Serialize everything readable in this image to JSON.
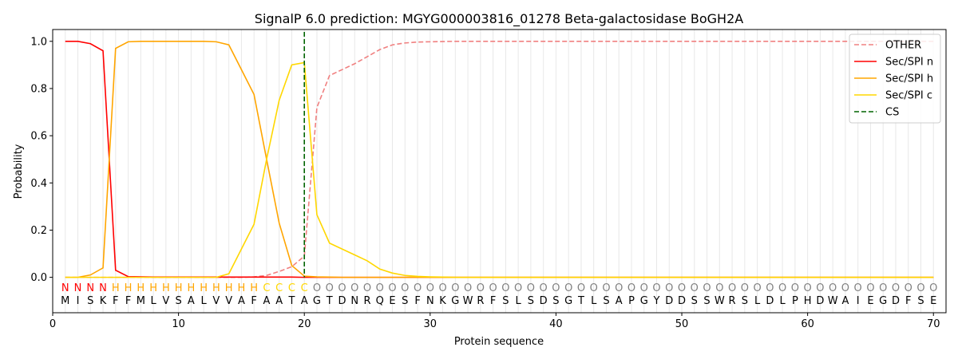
{
  "chart_data": {
    "type": "line",
    "title": "SignalP 6.0 prediction: MGYG000003816_01278 Beta-galactosidase BoGH2A",
    "xlabel": "Protein sequence",
    "ylabel": "Probability",
    "xlim": [
      0,
      71
    ],
    "ylim": [
      -0.15,
      1.05
    ],
    "xticks": [
      0,
      10,
      20,
      30,
      40,
      50,
      60,
      70
    ],
    "yticks": [
      0.0,
      0.2,
      0.4,
      0.6,
      0.8,
      1.0
    ],
    "ytick_labels": [
      "0.0",
      "0.2",
      "0.4",
      "0.6",
      "0.8",
      "1.0"
    ],
    "grid": "vertical lines at each residue",
    "legend_position": "top-right",
    "sequence": [
      "M",
      "I",
      "S",
      "K",
      "F",
      "F",
      "M",
      "L",
      "V",
      "S",
      "A",
      "L",
      "V",
      "V",
      "A",
      "F",
      "A",
      "A",
      "T",
      "A",
      "G",
      "T",
      "D",
      "N",
      "R",
      "Q",
      "E",
      "S",
      "F",
      "N",
      "K",
      "G",
      "W",
      "R",
      "F",
      "S",
      "L",
      "S",
      "D",
      "S",
      "G",
      "T",
      "L",
      "S",
      "A",
      "P",
      "G",
      "Y",
      "D",
      "D",
      "S",
      "S",
      "W",
      "R",
      "S",
      "L",
      "D",
      "L",
      "P",
      "H",
      "D",
      "W",
      "A",
      "I",
      "E",
      "G",
      "D",
      "F",
      "S",
      "E"
    ],
    "labels": [
      "N",
      "N",
      "N",
      "N",
      "H",
      "H",
      "H",
      "H",
      "H",
      "H",
      "H",
      "H",
      "H",
      "H",
      "H",
      "H",
      "C",
      "C",
      "C",
      "C",
      "O",
      "O",
      "O",
      "O",
      "O",
      "O",
      "O",
      "O",
      "O",
      "O",
      "O",
      "O",
      "O",
      "O",
      "O",
      "O",
      "O",
      "O",
      "O",
      "O",
      "O",
      "O",
      "O",
      "O",
      "O",
      "O",
      "O",
      "O",
      "O",
      "O",
      "O",
      "O",
      "O",
      "O",
      "O",
      "O",
      "O",
      "O",
      "O",
      "O",
      "O",
      "O",
      "O",
      "O",
      "O",
      "O",
      "O",
      "O",
      "O",
      "O"
    ],
    "label_colors": {
      "N": "#ff0000",
      "H": "#ffa500",
      "C": "#ffd700",
      "O": "#808080"
    },
    "cleavage_site": 20,
    "series": [
      {
        "name": "OTHER",
        "color": "#f08080",
        "dash": "dashed",
        "x": [
          1,
          2,
          3,
          4,
          5,
          6,
          7,
          8,
          9,
          10,
          11,
          12,
          13,
          14,
          15,
          16,
          17,
          18,
          19,
          20,
          21,
          22,
          23,
          24,
          25,
          26,
          27,
          28,
          29,
          30,
          31,
          32,
          33,
          34,
          35,
          36,
          37,
          38,
          39,
          40,
          41,
          42,
          43,
          44,
          45,
          46,
          47,
          48,
          49,
          50,
          51,
          52,
          53,
          54,
          55,
          56,
          57,
          58,
          59,
          60,
          61,
          62,
          63,
          64,
          65,
          66,
          67,
          68,
          69,
          70
        ],
        "values": [
          0.0,
          0.0,
          0.0,
          0.0,
          0.0,
          0.0,
          0.0,
          0.0,
          0.0,
          0.0,
          0.0,
          0.0,
          0.0,
          0.0,
          0.0,
          0.002,
          0.008,
          0.025,
          0.045,
          0.09,
          0.72,
          0.855,
          0.88,
          0.905,
          0.935,
          0.965,
          0.985,
          0.993,
          0.997,
          0.998,
          0.999,
          1.0,
          1.0,
          1.0,
          1.0,
          1.0,
          1.0,
          1.0,
          1.0,
          1.0,
          1.0,
          1.0,
          1.0,
          1.0,
          1.0,
          1.0,
          1.0,
          1.0,
          1.0,
          1.0,
          1.0,
          1.0,
          1.0,
          1.0,
          1.0,
          1.0,
          1.0,
          1.0,
          1.0,
          1.0,
          1.0,
          1.0,
          1.0,
          1.0,
          1.0,
          1.0,
          1.0,
          1.0,
          1.0,
          1.0
        ]
      },
      {
        "name": "Sec/SPI n",
        "color": "#ff0000",
        "dash": "solid",
        "x": [
          1,
          2,
          3,
          4,
          5,
          6,
          7,
          8,
          9,
          10,
          11,
          12,
          13,
          14,
          15,
          16,
          17,
          18,
          19,
          20,
          21,
          22,
          23,
          24,
          25,
          26,
          27,
          28,
          29,
          30,
          31,
          32,
          33,
          34,
          35,
          36,
          37,
          38,
          39,
          40,
          41,
          42,
          43,
          44,
          45,
          46,
          47,
          48,
          49,
          50,
          51,
          52,
          53,
          54,
          55,
          56,
          57,
          58,
          59,
          60,
          61,
          62,
          63,
          64,
          65,
          66,
          67,
          68,
          69,
          70
        ],
        "values": [
          1.0,
          1.0,
          0.99,
          0.96,
          0.03,
          0.003,
          0.002,
          0.001,
          0.001,
          0.001,
          0.001,
          0.001,
          0.001,
          0.001,
          0.001,
          0.001,
          0.001,
          0.001,
          0.001,
          0.0,
          0.0,
          0.0,
          0.0,
          0.0,
          0.0,
          0.0,
          0.0,
          0.0,
          0.0,
          0.0,
          0.0,
          0.0,
          0.0,
          0.0,
          0.0,
          0.0,
          0.0,
          0.0,
          0.0,
          0.0,
          0.0,
          0.0,
          0.0,
          0.0,
          0.0,
          0.0,
          0.0,
          0.0,
          0.0,
          0.0,
          0.0,
          0.0,
          0.0,
          0.0,
          0.0,
          0.0,
          0.0,
          0.0,
          0.0,
          0.0,
          0.0,
          0.0,
          0.0,
          0.0,
          0.0,
          0.0,
          0.0,
          0.0,
          0.0,
          0.0
        ]
      },
      {
        "name": "Sec/SPI h",
        "color": "#ffa500",
        "dash": "solid",
        "x": [
          1,
          2,
          3,
          4,
          5,
          6,
          7,
          8,
          9,
          10,
          11,
          12,
          13,
          14,
          15,
          16,
          17,
          18,
          19,
          20,
          21,
          22,
          23,
          24,
          25,
          26,
          27,
          28,
          29,
          30,
          31,
          32,
          33,
          34,
          35,
          36,
          37,
          38,
          39,
          40,
          41,
          42,
          43,
          44,
          45,
          46,
          47,
          48,
          49,
          50,
          51,
          52,
          53,
          54,
          55,
          56,
          57,
          58,
          59,
          60,
          61,
          62,
          63,
          64,
          65,
          66,
          67,
          68,
          69,
          70
        ],
        "values": [
          0.0,
          0.0,
          0.01,
          0.04,
          0.97,
          0.998,
          1.0,
          1.0,
          1.0,
          1.0,
          1.0,
          1.0,
          0.998,
          0.985,
          0.88,
          0.775,
          0.5,
          0.23,
          0.05,
          0.005,
          0.002,
          0.001,
          0.0,
          0.0,
          0.0,
          0.0,
          0.0,
          0.0,
          0.0,
          0.0,
          0.0,
          0.0,
          0.0,
          0.0,
          0.0,
          0.0,
          0.0,
          0.0,
          0.0,
          0.0,
          0.0,
          0.0,
          0.0,
          0.0,
          0.0,
          0.0,
          0.0,
          0.0,
          0.0,
          0.0,
          0.0,
          0.0,
          0.0,
          0.0,
          0.0,
          0.0,
          0.0,
          0.0,
          0.0,
          0.0,
          0.0,
          0.0,
          0.0,
          0.0,
          0.0,
          0.0,
          0.0,
          0.0,
          0.0,
          0.0
        ]
      },
      {
        "name": "Sec/SPI c",
        "color": "#ffd700",
        "dash": "solid",
        "x": [
          1,
          2,
          3,
          4,
          5,
          6,
          7,
          8,
          9,
          10,
          11,
          12,
          13,
          14,
          15,
          16,
          17,
          18,
          19,
          20,
          21,
          22,
          23,
          24,
          25,
          26,
          27,
          28,
          29,
          30,
          31,
          32,
          33,
          34,
          35,
          36,
          37,
          38,
          39,
          40,
          41,
          42,
          43,
          44,
          45,
          46,
          47,
          48,
          49,
          50,
          51,
          52,
          53,
          54,
          55,
          56,
          57,
          58,
          59,
          60,
          61,
          62,
          63,
          64,
          65,
          66,
          67,
          68,
          69,
          70
        ],
        "values": [
          0.0,
          0.0,
          0.0,
          0.0,
          0.0,
          0.0,
          0.0,
          0.0,
          0.0,
          0.0,
          0.0,
          0.0,
          0.0,
          0.015,
          0.12,
          0.225,
          0.5,
          0.75,
          0.9,
          0.91,
          0.265,
          0.145,
          0.12,
          0.095,
          0.07,
          0.035,
          0.018,
          0.008,
          0.004,
          0.002,
          0.001,
          0.0,
          0.0,
          0.0,
          0.0,
          0.0,
          0.0,
          0.0,
          0.0,
          0.0,
          0.0,
          0.0,
          0.0,
          0.0,
          0.0,
          0.0,
          0.0,
          0.0,
          0.0,
          0.0,
          0.0,
          0.0,
          0.0,
          0.0,
          0.0,
          0.0,
          0.0,
          0.0,
          0.0,
          0.0,
          0.0,
          0.0,
          0.0,
          0.0,
          0.0,
          0.0,
          0.0,
          0.0,
          0.0,
          0.0
        ]
      }
    ],
    "legend": [
      {
        "name": "OTHER",
        "color": "#f08080",
        "dash": "dashed"
      },
      {
        "name": "Sec/SPI n",
        "color": "#ff0000",
        "dash": "solid"
      },
      {
        "name": "Sec/SPI h",
        "color": "#ffa500",
        "dash": "solid"
      },
      {
        "name": "Sec/SPI c",
        "color": "#ffd700",
        "dash": "solid"
      },
      {
        "name": "CS",
        "color": "#006400",
        "dash": "dashed"
      }
    ]
  }
}
